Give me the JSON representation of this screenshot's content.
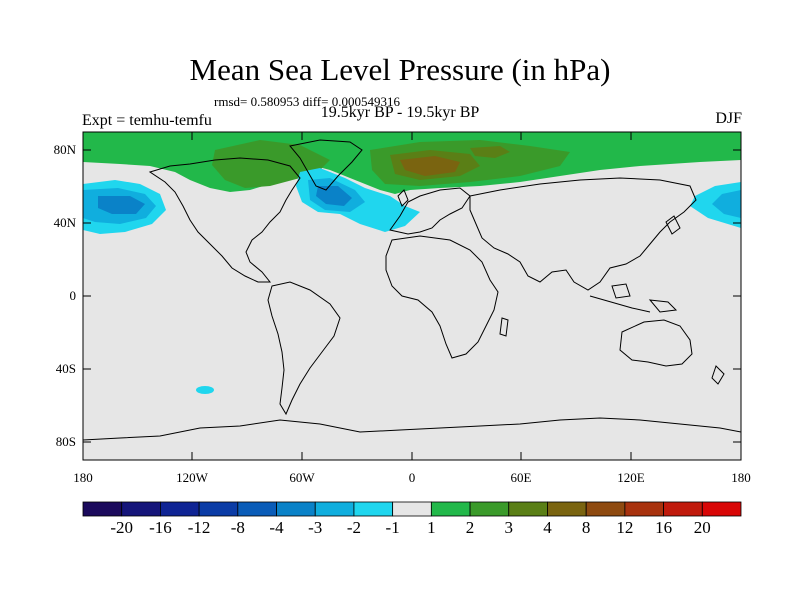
{
  "title": "Mean Sea Level Pressure (in hPa)",
  "stats": "rmsd= 0.580953 diff= 0.000549316",
  "subtitle_left": "Expt = temhu-temfu",
  "subtitle_center": "19.5kyr BP - 19.5kyr BP",
  "subtitle_right": "DJF",
  "lat_ticks": [
    "80N",
    "40N",
    "0",
    "40S",
    "80S"
  ],
  "lon_ticks": [
    "180",
    "120W",
    "60W",
    "0",
    "60E",
    "120E",
    "180"
  ],
  "colorbar": {
    "labels": [
      "-20",
      "-16",
      "-12",
      "-8",
      "-4",
      "-3",
      "-2",
      "-1",
      "1",
      "2",
      "3",
      "4",
      "8",
      "12",
      "16",
      "20"
    ],
    "colors": [
      "#1b0a5c",
      "#15157a",
      "#0f2494",
      "#0b3ca6",
      "#0a5cb8",
      "#0a82c8",
      "#10aede",
      "#20d6ee",
      "#e6e6e6",
      "#22b84a",
      "#3a9a2a",
      "#5a7f16",
      "#7a6410",
      "#8e4a10",
      "#a8320e",
      "#c01a0c",
      "#d80606"
    ]
  },
  "colors": {
    "background_land": "#e6e6e6",
    "positive_green": "#22b84a",
    "dark_green": "#3a9a2a",
    "olive": "#5a7f16",
    "brown": "#7a6410",
    "light_cyan": "#20d6ee",
    "cyan": "#10aede",
    "blue": "#0a82c8",
    "coastline": "#000000"
  }
}
